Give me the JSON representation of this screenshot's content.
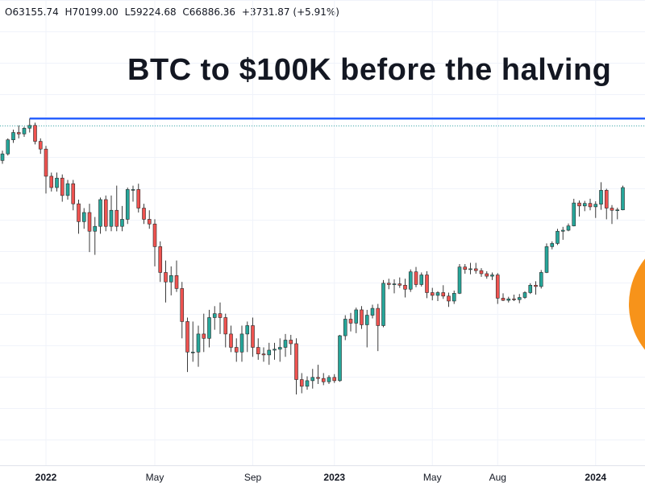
{
  "header": {
    "open": "O63155.74",
    "high": "H70199.00",
    "low": "L59224.68",
    "close": "C66886.36",
    "change": "+3731.87 (+5.91%)"
  },
  "title": "BTC to $100K before the halving",
  "colors": {
    "up": "#26a69a",
    "down": "#ef5350",
    "line": "#2962ff",
    "circle": "#f7931a"
  },
  "chart_data": {
    "type": "candlestick",
    "title": "BTC to $100K before the halving",
    "resistance_level": 69000,
    "xticks": [
      {
        "label": "2022",
        "index": 8,
        "bold": true
      },
      {
        "label": "May",
        "index": 28,
        "bold": false
      },
      {
        "label": "Sep",
        "index": 46,
        "bold": false
      },
      {
        "label": "2023",
        "index": 61,
        "bold": true
      },
      {
        "label": "May",
        "index": 79,
        "bold": false
      },
      {
        "label": "Aug",
        "index": 91,
        "bold": false
      },
      {
        "label": "2024",
        "index": 109,
        "bold": true
      }
    ],
    "candles": [
      [
        55000,
        58000,
        54000,
        57000
      ],
      [
        57000,
        62000,
        56500,
        61500
      ],
      [
        61500,
        65000,
        60500,
        64000
      ],
      [
        64000,
        66500,
        62000,
        63500
      ],
      [
        63500,
        66000,
        62500,
        65500
      ],
      [
        65500,
        69000,
        64000,
        66500
      ],
      [
        66500,
        67500,
        60000,
        61000
      ],
      [
        61000,
        62000,
        57000,
        58500
      ],
      [
        58500,
        59500,
        46000,
        50500
      ],
      [
        50500,
        51500,
        46500,
        47500
      ],
      [
        47500,
        51500,
        46500,
        50000
      ],
      [
        50000,
        51000,
        44000,
        45500
      ],
      [
        45500,
        49500,
        44500,
        48500
      ],
      [
        48500,
        49500,
        42000,
        43500
      ],
      [
        43500,
        44500,
        37000,
        39500
      ],
      [
        39500,
        42500,
        38000,
        41500
      ],
      [
        41500,
        43500,
        33500,
        37500
      ],
      [
        37500,
        40500,
        33000,
        38500
      ],
      [
        38500,
        45000,
        37000,
        44500
      ],
      [
        44500,
        45500,
        37500,
        38500
      ],
      [
        38500,
        45500,
        37500,
        42000
      ],
      [
        42000,
        48000,
        37500,
        38500
      ],
      [
        38500,
        43000,
        37500,
        40000
      ],
      [
        40000,
        47500,
        39000,
        47000
      ],
      [
        47000,
        48000,
        44000,
        47000
      ],
      [
        47000,
        48500,
        41500,
        42500
      ],
      [
        42500,
        43500,
        39000,
        40000
      ],
      [
        40000,
        42000,
        38000,
        39000
      ],
      [
        39000,
        40000,
        31000,
        34500
      ],
      [
        34500,
        35500,
        28500,
        30000
      ],
      [
        30000,
        32000,
        25500,
        28500
      ],
      [
        28500,
        31000,
        26500,
        29500
      ],
      [
        29500,
        32000,
        27000,
        27500
      ],
      [
        27500,
        28500,
        21000,
        23000
      ],
      [
        23000,
        23500,
        17500,
        19500
      ],
      [
        19500,
        23000,
        18500,
        19500
      ],
      [
        19500,
        22500,
        18000,
        21500
      ],
      [
        21500,
        24000,
        19500,
        21000
      ],
      [
        21000,
        24500,
        20000,
        23500
      ],
      [
        23500,
        25000,
        22000,
        24000
      ],
      [
        24000,
        25500,
        21500,
        23500
      ],
      [
        23500,
        24000,
        20000,
        21500
      ],
      [
        21500,
        22500,
        19500,
        20000
      ],
      [
        20000,
        21000,
        18500,
        19500
      ],
      [
        19500,
        22500,
        18500,
        21500
      ],
      [
        21500,
        23000,
        19500,
        22500
      ],
      [
        22500,
        23500,
        19000,
        20000
      ],
      [
        20000,
        21000,
        18700,
        19300
      ],
      [
        19300,
        20000,
        18500,
        19200
      ],
      [
        19200,
        20500,
        18200,
        19700
      ],
      [
        19700,
        20500,
        18700,
        19800
      ],
      [
        19800,
        21000,
        18500,
        20000
      ],
      [
        20000,
        21500,
        19000,
        20800
      ],
      [
        20800,
        21400,
        19200,
        20400
      ],
      [
        20400,
        21000,
        15500,
        16800
      ],
      [
        16800,
        17400,
        15600,
        16200
      ],
      [
        16200,
        17100,
        15900,
        16700
      ],
      [
        16700,
        17800,
        16000,
        17000
      ],
      [
        17000,
        18200,
        16400,
        16900
      ],
      [
        16900,
        17400,
        16300,
        16600
      ],
      [
        16600,
        17200,
        16400,
        17000
      ],
      [
        17000,
        17300,
        16500,
        16700
      ],
      [
        16700,
        21400,
        16600,
        21300
      ],
      [
        21300,
        23800,
        20800,
        23300
      ],
      [
        23300,
        24100,
        21800,
        22800
      ],
      [
        22800,
        24800,
        21600,
        24500
      ],
      [
        24500,
        25000,
        22100,
        22600
      ],
      [
        22600,
        24500,
        20000,
        23800
      ],
      [
        23800,
        25200,
        23400,
        24700
      ],
      [
        24700,
        25300,
        19600,
        22500
      ],
      [
        22500,
        28800,
        22300,
        28300
      ],
      [
        28300,
        29000,
        27400,
        28100
      ],
      [
        28100,
        28900,
        26800,
        28200
      ],
      [
        28200,
        29200,
        27600,
        28000
      ],
      [
        28000,
        29000,
        26200,
        27400
      ],
      [
        27400,
        30500,
        27000,
        30100
      ],
      [
        30100,
        30900,
        27700,
        28100
      ],
      [
        28100,
        30000,
        27800,
        29600
      ],
      [
        29600,
        30200,
        26100,
        26900
      ],
      [
        26900,
        27600,
        25800,
        26500
      ],
      [
        26500,
        27100,
        25700,
        26900
      ],
      [
        26900,
        28000,
        26000,
        26400
      ],
      [
        26400,
        26900,
        24900,
        25700
      ],
      [
        25700,
        27200,
        25300,
        26800
      ],
      [
        26800,
        31400,
        26700,
        30900
      ],
      [
        30900,
        31400,
        29800,
        30500
      ],
      [
        30500,
        31600,
        29700,
        30600
      ],
      [
        30600,
        31600,
        29800,
        30300
      ],
      [
        30300,
        30700,
        29300,
        29800
      ],
      [
        29800,
        30200,
        29000,
        29400
      ],
      [
        29400,
        30000,
        28800,
        29600
      ],
      [
        29600,
        29900,
        25300,
        26100
      ],
      [
        26100,
        26800,
        25700,
        25800
      ],
      [
        25800,
        26300,
        25500,
        26000
      ],
      [
        26000,
        26600,
        25700,
        25900
      ],
      [
        25900,
        26700,
        25400,
        26200
      ],
      [
        26200,
        27100,
        26000,
        26900
      ],
      [
        26900,
        28300,
        26700,
        28000
      ],
      [
        28000,
        28600,
        26600,
        27800
      ],
      [
        27800,
        30400,
        27500,
        30000
      ],
      [
        30000,
        35100,
        29900,
        34500
      ],
      [
        34500,
        35500,
        34000,
        35100
      ],
      [
        35100,
        38000,
        34800,
        37500
      ],
      [
        37500,
        38400,
        35800,
        37700
      ],
      [
        37700,
        39100,
        37500,
        38600
      ],
      [
        38600,
        44700,
        38500,
        43700
      ],
      [
        43700,
        44300,
        40600,
        43000
      ],
      [
        43000,
        44200,
        41800,
        43600
      ],
      [
        43600,
        44700,
        42000,
        42800
      ],
      [
        42800,
        44100,
        40300,
        43400
      ],
      [
        43400,
        48900,
        42100,
        46800
      ],
      [
        46800,
        47200,
        40000,
        42500
      ],
      [
        42500,
        43200,
        39000,
        42000
      ],
      [
        42000,
        42600,
        40000,
        42100
      ],
      [
        42100,
        48000,
        42000,
        47500
      ]
    ]
  }
}
